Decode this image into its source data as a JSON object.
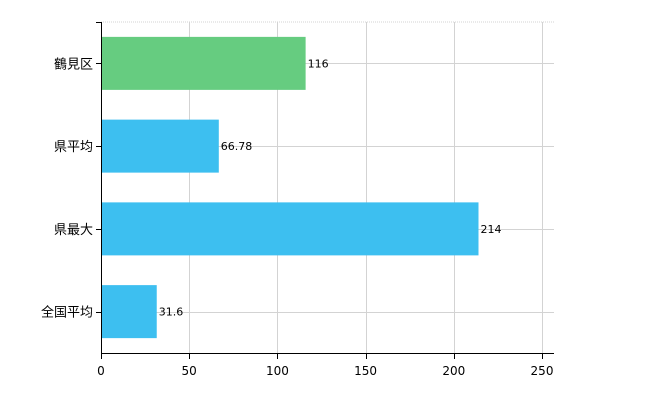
{
  "chart_data": {
    "type": "bar",
    "orientation": "horizontal",
    "categories": [
      "鶴見区",
      "県平均",
      "県最大",
      "全国平均"
    ],
    "values": [
      116,
      66.78,
      214,
      31.6
    ],
    "data_labels": [
      "116",
      "66.78",
      "214",
      "31.6"
    ],
    "colors": [
      "#66cc80",
      "#3dbff0",
      "#3dbff0",
      "#3dbff0"
    ],
    "xlim": [
      0,
      250
    ],
    "xticks": [
      0,
      50,
      100,
      150,
      200,
      250
    ],
    "grid": true,
    "legend": "none"
  }
}
